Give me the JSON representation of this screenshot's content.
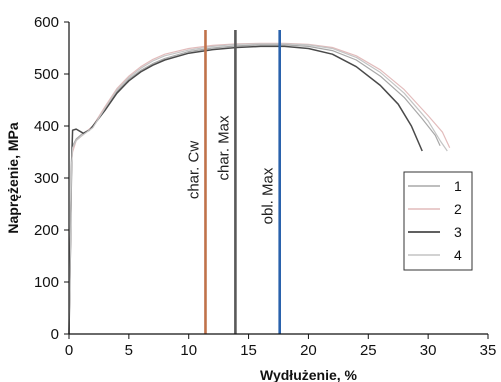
{
  "chart_data": {
    "type": "line",
    "xlabel": "Wydłużenie, %",
    "ylabel": "Naprężenie, MPa",
    "xlim": [
      0,
      35
    ],
    "ylim": [
      0,
      600
    ],
    "xticks": [
      0,
      5,
      10,
      15,
      20,
      25,
      30,
      35
    ],
    "yticks": [
      0,
      100,
      200,
      300,
      400,
      500,
      600
    ],
    "grid": false,
    "legend": {
      "placement": "right"
    },
    "series": [
      {
        "name": "1",
        "color": "#a8a8a8",
        "points": [
          [
            0,
            0
          ],
          [
            0.12,
            160
          ],
          [
            0.22,
            330
          ],
          [
            0.3,
            362
          ],
          [
            0.6,
            375
          ],
          [
            1,
            383
          ],
          [
            2,
            398
          ],
          [
            3,
            432
          ],
          [
            4,
            466
          ],
          [
            5,
            490
          ],
          [
            6,
            507
          ],
          [
            7,
            520
          ],
          [
            8,
            530
          ],
          [
            10,
            543
          ],
          [
            12,
            550
          ],
          [
            14,
            554
          ],
          [
            16,
            556
          ],
          [
            18,
            556
          ],
          [
            20,
            553
          ],
          [
            22,
            545
          ],
          [
            24,
            527
          ],
          [
            26,
            496
          ],
          [
            28,
            455
          ],
          [
            29.5,
            414
          ],
          [
            30.6,
            382
          ],
          [
            31,
            362
          ]
        ]
      },
      {
        "name": "2",
        "color": "#e2bcbc",
        "points": [
          [
            0,
            0
          ],
          [
            0.12,
            160
          ],
          [
            0.22,
            330
          ],
          [
            0.3,
            350
          ],
          [
            0.6,
            372
          ],
          [
            1,
            380
          ],
          [
            2,
            400
          ],
          [
            3,
            437
          ],
          [
            4,
            472
          ],
          [
            5,
            496
          ],
          [
            6,
            514
          ],
          [
            7,
            528
          ],
          [
            8,
            538
          ],
          [
            10,
            549
          ],
          [
            12,
            555
          ],
          [
            14,
            558
          ],
          [
            16,
            559
          ],
          [
            18,
            559
          ],
          [
            20,
            557
          ],
          [
            22,
            551
          ],
          [
            24,
            535
          ],
          [
            26,
            508
          ],
          [
            28,
            470
          ],
          [
            30,
            420
          ],
          [
            31.2,
            388
          ],
          [
            31.8,
            358
          ]
        ]
      },
      {
        "name": "3",
        "color": "#4a4a4a",
        "points": [
          [
            0,
            0
          ],
          [
            0.12,
            160
          ],
          [
            0.22,
            330
          ],
          [
            0.3,
            392
          ],
          [
            0.6,
            394
          ],
          [
            1.2,
            386
          ],
          [
            1.7,
            392
          ],
          [
            2,
            400
          ],
          [
            3,
            430
          ],
          [
            4,
            463
          ],
          [
            5,
            487
          ],
          [
            6,
            504
          ],
          [
            7,
            517
          ],
          [
            8,
            527
          ],
          [
            10,
            540
          ],
          [
            12,
            547
          ],
          [
            14,
            551
          ],
          [
            16,
            553
          ],
          [
            18,
            553
          ],
          [
            20,
            549
          ],
          [
            22,
            538
          ],
          [
            24,
            514
          ],
          [
            26,
            478
          ],
          [
            27.5,
            442
          ],
          [
            28.6,
            400
          ],
          [
            29.5,
            352
          ]
        ]
      },
      {
        "name": "4",
        "color": "#c4c4c4",
        "points": [
          [
            0,
            0
          ],
          [
            0.12,
            160
          ],
          [
            0.22,
            330
          ],
          [
            0.3,
            358
          ],
          [
            0.6,
            372
          ],
          [
            1,
            380
          ],
          [
            2,
            397
          ],
          [
            3,
            434
          ],
          [
            4,
            469
          ],
          [
            5,
            493
          ],
          [
            6,
            511
          ],
          [
            7,
            525
          ],
          [
            8,
            535
          ],
          [
            10,
            546
          ],
          [
            12,
            553
          ],
          [
            14,
            557
          ],
          [
            16,
            558
          ],
          [
            18,
            558
          ],
          [
            20,
            556
          ],
          [
            22,
            549
          ],
          [
            24,
            532
          ],
          [
            26,
            503
          ],
          [
            28,
            463
          ],
          [
            30,
            410
          ],
          [
            31,
            372
          ],
          [
            31.6,
            352
          ]
        ]
      }
    ],
    "vertical_lines": [
      {
        "x": 11.4,
        "label": "char. Cw",
        "color": "#c0724a"
      },
      {
        "x": 13.9,
        "label": "char. Max",
        "color": "#595959"
      },
      {
        "x": 17.6,
        "label": "obl. Max",
        "color": "#2a62ac"
      }
    ]
  }
}
